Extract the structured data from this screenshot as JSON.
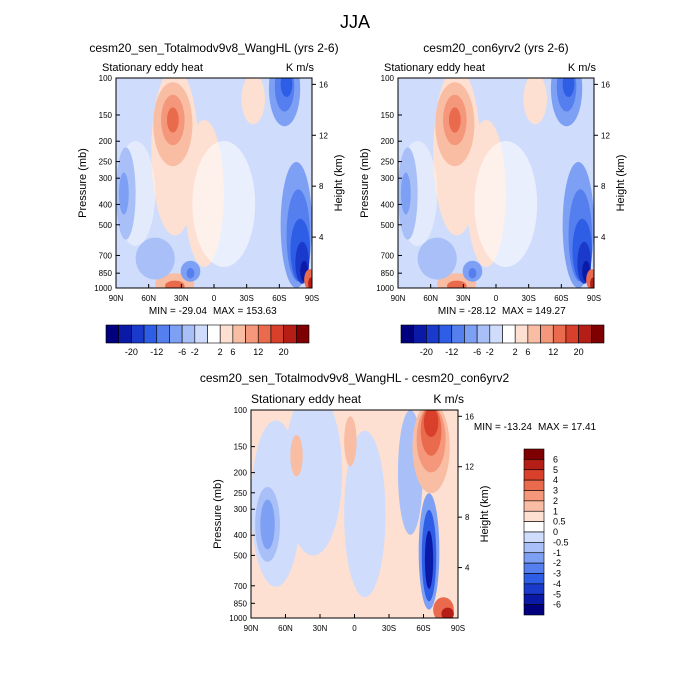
{
  "figure": {
    "title": "JJA"
  },
  "colors": {
    "scale": [
      "#00007f",
      "#0a1aa6",
      "#1a3acb",
      "#2f5ee6",
      "#557fef",
      "#7ea0f4",
      "#a8c0f7",
      "#cfdcfb",
      "#ffffff",
      "#fde0d2",
      "#f9bda4",
      "#f4977a",
      "#ea6a4d",
      "#d8402b",
      "#b51e16",
      "#7f0000"
    ]
  },
  "chart_data": [
    {
      "type": "heatmap",
      "id": "panel1",
      "title": "cesm20_sen_Totalmodv9v8_WangHL (yrs 2-6)",
      "left_label": "Stationary eddy heat",
      "right_label": "K m/s",
      "ylabel": "Pressure (mb)",
      "y2label": "Height (km)",
      "x_ticks": [
        "90N",
        "60N",
        "30N",
        "0",
        "30S",
        "60S",
        "90S"
      ],
      "y_ticks": [
        "100",
        "150",
        "200",
        "250",
        "300",
        "400",
        "500",
        "700",
        "850",
        "1000"
      ],
      "y2_ticks": [
        "16",
        "12",
        "8",
        "4"
      ],
      "min_label": "MIN = -29.04",
      "max_label": "MAX = 153.63",
      "colorbar_labels": [
        "-20",
        "-12",
        "-6",
        "-2",
        "2",
        "6",
        "12",
        "20"
      ]
    },
    {
      "type": "heatmap",
      "id": "panel2",
      "title": "cesm20_con6yrv2 (yrs 2-6)",
      "left_label": "Stationary eddy heat",
      "right_label": "K m/s",
      "ylabel": "Pressure (mb)",
      "y2label": "Height (km)",
      "x_ticks": [
        "90N",
        "60N",
        "30N",
        "0",
        "30S",
        "60S",
        "90S"
      ],
      "y_ticks": [
        "100",
        "150",
        "200",
        "250",
        "300",
        "400",
        "500",
        "700",
        "850",
        "1000"
      ],
      "y2_ticks": [
        "16",
        "12",
        "8",
        "4"
      ],
      "min_label": "MIN = -28.12",
      "max_label": "MAX = 149.27",
      "colorbar_labels": [
        "-20",
        "-12",
        "-6",
        "-2",
        "2",
        "6",
        "12",
        "20"
      ]
    },
    {
      "type": "heatmap",
      "id": "panel3",
      "title": "cesm20_sen_Totalmodv9v8_WangHL - cesm20_con6yrv2",
      "left_label": "Stationary eddy heat",
      "right_label": "K m/s",
      "ylabel": "Pressure (mb)",
      "y2label": "Height (km)",
      "x_ticks": [
        "90N",
        "60N",
        "30N",
        "0",
        "30S",
        "60S",
        "90S"
      ],
      "y_ticks": [
        "100",
        "150",
        "200",
        "250",
        "300",
        "400",
        "500",
        "700",
        "850",
        "1000"
      ],
      "y2_ticks": [
        "16",
        "12",
        "8",
        "4"
      ],
      "min_label": "MIN = -13.24",
      "max_label": "MAX =  17.41",
      "colorbar_labels": [
        "6",
        "5",
        "4",
        "3",
        "2",
        "1",
        "0.5",
        "0",
        "-0.5",
        "-1",
        "-2",
        "-3",
        "-4",
        "-5",
        "-6"
      ]
    }
  ]
}
